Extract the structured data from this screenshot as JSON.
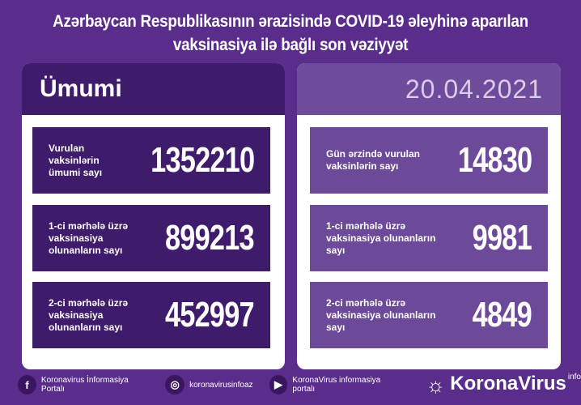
{
  "title_line1": "Azərbaycan Respublikasının ərazisində COVID-19 əleyhinə aparılan",
  "title_line2": "vaksinasiya ilə bağlı son vəziyyət",
  "left": {
    "header": "Ümumi",
    "cards": [
      {
        "label": "Vurulan vaksinlərin ümumi sayı",
        "value": "1352210"
      },
      {
        "label": "1-ci mərhələ üzrə vaksinasiya olunanların sayı",
        "value": "899213"
      },
      {
        "label": "2-ci mərhələ üzrə vaksinasiya olunanların sayı",
        "value": "452997"
      }
    ]
  },
  "right": {
    "date": "20.04.2021",
    "cards": [
      {
        "label": "Gün ərzində vurulan vaksinlərin sayı",
        "value": "14830"
      },
      {
        "label": "1-ci mərhələ üzrə vaksinasiya olunanların sayı",
        "value": "9981"
      },
      {
        "label": "2-ci mərhələ üzrə vaksinasiya olunanların sayı",
        "value": "4849"
      }
    ]
  },
  "footer": {
    "facebook": "Koronavirus İnformasiya Portalı",
    "instagram": "koronavirusinfoaz",
    "youtube": "KoronaVirus informasiya portalı",
    "brand": "KoronaVirus",
    "brand_sup": "info"
  },
  "colors": {
    "background": "#5a2d8c",
    "dark_card": "#3f1b6b",
    "light_card": "#6c4a99"
  }
}
